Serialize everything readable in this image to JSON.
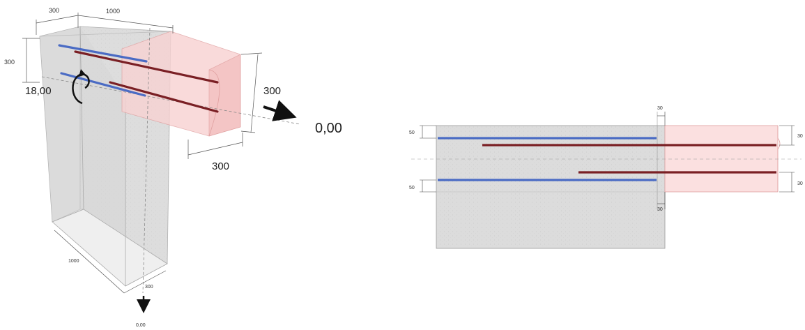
{
  "iso": {
    "dim_top_left": "300",
    "dim_top_right": "1000",
    "dim_left_side": "300",
    "moment_value": "18,00",
    "dim_right_height": "300",
    "dim_right_width": "300",
    "force_value": "0,00",
    "dim_base_length": "1000",
    "dim_base_width": "300",
    "bottom_force_value": "0,00"
  },
  "section": {
    "dim_top_gap": "30",
    "dim_left_top": "50",
    "dim_left_bottom": "50",
    "dim_right_top": "30",
    "dim_right_bottom": "30",
    "dim_bottom_gap": "30"
  },
  "colors": {
    "rebar_blue": "#4a6bc4",
    "rebar_red": "#7a1f24",
    "column_fill": "#dcdcdc",
    "beam_fill": "#f9dcdc"
  }
}
